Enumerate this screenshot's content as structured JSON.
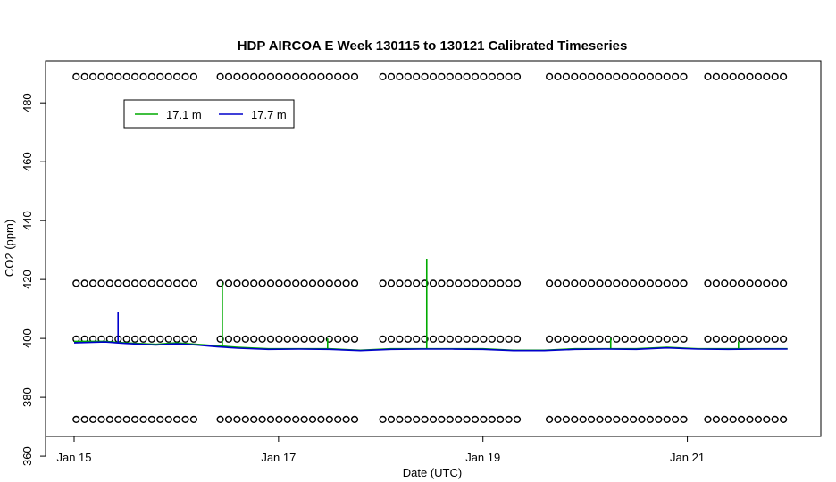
{
  "chart_data": {
    "type": "line",
    "title": "HDP AIRCOA E  Week 130115 to 130121  Calibrated Timeseries",
    "xlabel": "Date (UTC)",
    "ylabel": "CO2 (ppm)",
    "xlim_days": [
      15.0,
      22.0
    ],
    "ylim": [
      367,
      494
    ],
    "x_ticks": [
      {
        "day": 15,
        "label": "Jan 15"
      },
      {
        "day": 17,
        "label": "Jan 17"
      },
      {
        "day": 19,
        "label": "Jan 19"
      },
      {
        "day": 21,
        "label": "Jan 21"
      }
    ],
    "y_ticks": [
      360,
      380,
      400,
      420,
      440,
      460,
      480
    ],
    "legend": {
      "placement": "top-left",
      "entries": [
        {
          "label": "17.1 m",
          "color": "#00aa00"
        },
        {
          "label": "17.7 m",
          "color": "#0000cc"
        }
      ]
    },
    "series": [
      {
        "name": "17.1 m",
        "color": "#00aa00",
        "x": [
          15.0,
          15.3,
          15.5,
          15.8,
          16.0,
          16.2,
          16.4,
          16.6,
          16.9,
          17.2,
          17.5,
          17.8,
          18.1,
          18.4,
          18.7,
          19.0,
          19.3,
          19.6,
          19.9,
          20.2,
          20.5,
          20.8,
          21.1,
          21.4,
          21.7,
          21.98
        ],
        "y": [
          399,
          399,
          398.5,
          398,
          398.5,
          398,
          397.5,
          397,
          396.5,
          396.5,
          396.5,
          396,
          396.5,
          396.5,
          396.5,
          396.5,
          396,
          396,
          396.5,
          396.5,
          396.5,
          397,
          396.5,
          396.5,
          396.5,
          396.5
        ],
        "spikes": [
          {
            "x": 16.45,
            "y": 419
          },
          {
            "x": 17.48,
            "y": 400
          },
          {
            "x": 18.45,
            "y": 427
          },
          {
            "x": 20.25,
            "y": 400
          },
          {
            "x": 21.5,
            "y": 399
          }
        ]
      },
      {
        "name": "17.7 m",
        "color": "#0000cc",
        "x": [
          15.0,
          15.3,
          15.5,
          15.8,
          16.0,
          16.2,
          16.4,
          16.6,
          16.9,
          17.2,
          17.5,
          17.8,
          18.1,
          18.4,
          18.7,
          19.0,
          19.3,
          19.6,
          19.9,
          20.2,
          20.5,
          20.8,
          21.1,
          21.4,
          21.7,
          21.98
        ],
        "y": [
          398.5,
          398.8,
          398.3,
          397.8,
          398.2,
          397.8,
          397.2,
          396.7,
          396.3,
          396.4,
          396.3,
          395.9,
          396.3,
          396.4,
          396.4,
          396.3,
          395.9,
          395.9,
          396.3,
          396.4,
          396.3,
          396.8,
          396.4,
          396.3,
          396.4,
          396.4
        ],
        "spikes": [
          {
            "x": 15.43,
            "y": 409
          }
        ]
      }
    ],
    "calibration_markers": {
      "symbol": "open circle",
      "levels": [
        372.5,
        399.8,
        418.7,
        488.9
      ],
      "segments_days": [
        [
          15.02,
          16.18
        ],
        [
          16.43,
          17.78
        ],
        [
          18.02,
          19.38
        ],
        [
          19.65,
          20.98
        ],
        [
          21.2,
          21.98
        ]
      ]
    }
  }
}
